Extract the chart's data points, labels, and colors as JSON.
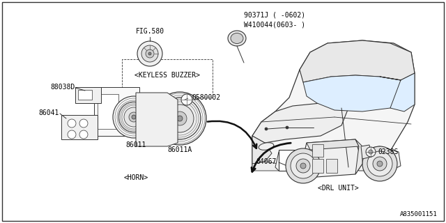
{
  "bg_color": "#ffffff",
  "border_color": "#333333",
  "line_color": "#333333",
  "diagram_id": "A835001151",
  "part_numbers_line1": "90371J ( -0602)",
  "part_numbers_line2": "W410044(0603- )",
  "fig_ref": "FIG.580",
  "label_keyless": "<KEYLESS BUZZER>",
  "label_horn": "<HORN>",
  "label_drl": "<DRL UNIT>",
  "id_88038D": "88038D",
  "id_86041": "86041",
  "id_86011": "86011",
  "id_86011A": "86011A",
  "id_Q580002": "Q580002",
  "id_84067": "84067",
  "id_0238S": "0238S",
  "font_size": 7.0
}
